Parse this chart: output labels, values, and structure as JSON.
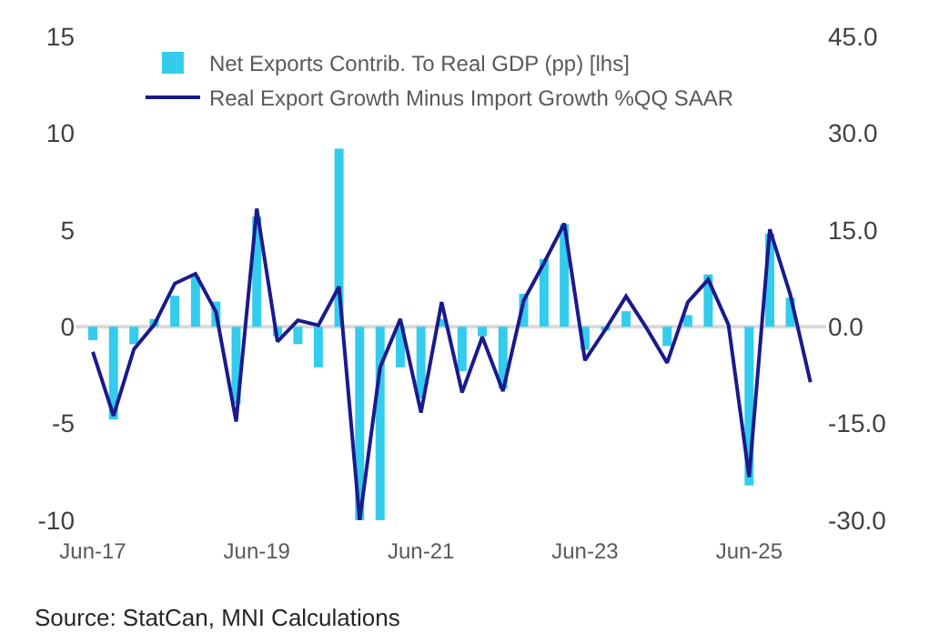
{
  "chart_data": {
    "type": "bar",
    "x": [
      "2017-06",
      "2017-09",
      "2017-12",
      "2018-03",
      "2018-06",
      "2018-09",
      "2018-12",
      "2019-03",
      "2019-06",
      "2019-09",
      "2019-12",
      "2020-03",
      "2020-06",
      "2020-09",
      "2020-12",
      "2021-03",
      "2021-06",
      "2021-09",
      "2021-12",
      "2022-03",
      "2022-06",
      "2022-09",
      "2022-12",
      "2023-03",
      "2023-06",
      "2023-09",
      "2023-12",
      "2024-03",
      "2024-06",
      "2024-09",
      "2024-12",
      "2025-03",
      "2025-06",
      "2025-09",
      "2025-12",
      "2026-03"
    ],
    "series": [
      {
        "name": "Net Exports Contrib. To Real GDP (pp) [lhs]",
        "color": "#33ccec",
        "values": [
          -0.7,
          -4.8,
          -0.9,
          0.4,
          1.6,
          2.6,
          1.3,
          -4.0,
          5.7,
          -0.5,
          -0.9,
          -2.1,
          9.2,
          -10,
          -10,
          -2.1,
          -3.7,
          0.4,
          -2.3,
          -0.5,
          -3.2,
          1.7,
          3.5,
          5.3,
          -1.2,
          -0.2,
          0.8,
          0.0,
          -1.0,
          0.6,
          2.7,
          0.0,
          -8.2,
          4.8,
          1.5,
          null
        ]
      },
      {
        "name": "Real Export Growth Minus Import Growth %QQ SAAR",
        "type": "line",
        "axis": "y2",
        "color": "#1a1a8c",
        "values": [
          -3.9,
          -13.8,
          -3.5,
          0.3,
          6.7,
          8.2,
          2.3,
          -14.7,
          18.3,
          -2.3,
          1.0,
          0.2,
          6.2,
          -30,
          -6.3,
          1.2,
          -13.3,
          3.8,
          -10.2,
          -1.6,
          -10.0,
          4.0,
          9.9,
          16.0,
          -5.2,
          -0.4,
          4.7,
          -0.2,
          -5.6,
          3.8,
          7.3,
          0.3,
          -23.3,
          15.1,
          5.0,
          -8.6
        ]
      }
    ],
    "xlim": [
      "2017-03-20",
      "2026-05-10"
    ],
    "xticks": [
      {
        "value": "2017-06",
        "label": "Jun-17"
      },
      {
        "value": "2019-06",
        "label": "Jun-19"
      },
      {
        "value": "2021-06",
        "label": "Jun-21"
      },
      {
        "value": "2023-06",
        "label": "Jun-23"
      },
      {
        "value": "2025-06",
        "label": "Jun-25"
      }
    ],
    "ylim": [
      -10,
      15
    ],
    "yticks": [
      -10,
      -5,
      0,
      5,
      10,
      15
    ],
    "y2lim": [
      -30,
      45
    ],
    "y2ticks": [
      {
        "value": -30,
        "label": "-30.0"
      },
      {
        "value": -15,
        "label": "-15.0"
      },
      {
        "value": 0,
        "label": "0.0"
      },
      {
        "value": 15,
        "label": "15.0"
      },
      {
        "value": 30,
        "label": "30.0"
      },
      {
        "value": 45,
        "label": "45.0"
      }
    ],
    "ref_lines": [
      {
        "axis": "y",
        "value": 0,
        "color": "#d9d9d9"
      }
    ],
    "grid": false,
    "legend": "top",
    "annotations": [
      "Source: StatCan, MNI Calculations"
    ]
  }
}
